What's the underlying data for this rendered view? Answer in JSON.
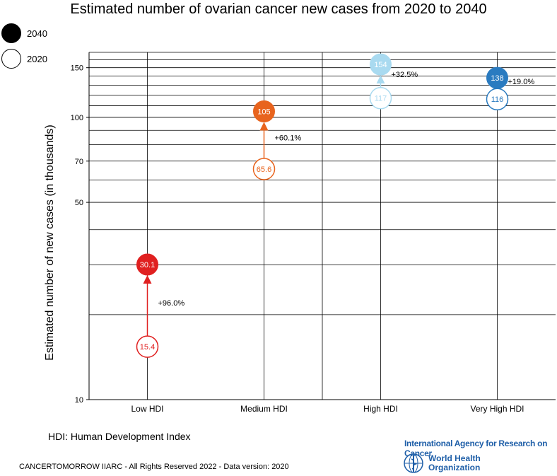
{
  "chart_data": {
    "type": "scatter",
    "title": "Estimated number of ovarian cancer new cases from 2020 to 2040",
    "ylabel": "Estimated number of new cases (in thousands)",
    "xlabel": "",
    "yscale": "log",
    "ylim": [
      10,
      170
    ],
    "yticks": [
      10,
      50,
      70,
      100,
      150
    ],
    "categories": [
      "Low HDI",
      "Medium HDI",
      "High HDI",
      "Very High HDI"
    ],
    "series": [
      {
        "name": "2020",
        "values": [
          15.4,
          65.6,
          117,
          116
        ]
      },
      {
        "name": "2040",
        "values": [
          30.1,
          105,
          154,
          138
        ]
      }
    ],
    "labels_2020": [
      "15.4",
      "65.6",
      "117",
      "116"
    ],
    "labels_2040": [
      "30.1",
      "105",
      "154",
      "138"
    ],
    "change_labels": [
      "+96.0%",
      "+60.1%",
      "+32.5%",
      "+19.0%"
    ],
    "colors": [
      "#e02020",
      "#e8641e",
      "#a9daf0",
      "#2a7bc0"
    ],
    "legend_placement": "top-left",
    "grid": true
  },
  "legend": {
    "item_2040": "2040",
    "item_2020": "2020",
    "color_2040": "#000000",
    "color_2020": "#ffffff"
  },
  "footnote": "HDI: Human Development Index",
  "copyright": "CANCERTOMORROW IIARC - All Rights Reserved 2022 - Data version: 2020",
  "branding": {
    "iarc_name": "International Agency for Research on Cancer",
    "who_line1": "World Health",
    "who_line2": "Organization",
    "who_icon": "who-emblem-icon"
  }
}
